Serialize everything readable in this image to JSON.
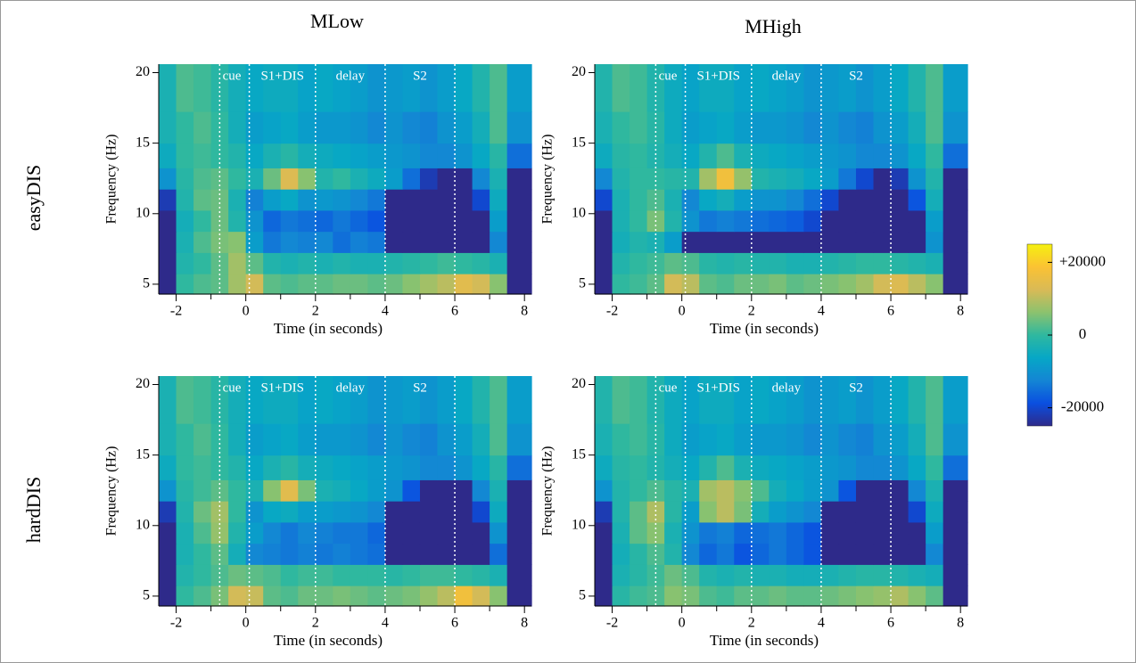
{
  "column_titles": [
    "MLow",
    "MHigh"
  ],
  "row_titles": [
    "easyDIS",
    "hardDIS"
  ],
  "colorbar": {
    "clim": [
      -25000,
      25000
    ],
    "ticks": [
      {
        "value": 20000,
        "label": "+20000"
      },
      0,
      -20000
    ],
    "colormap": [
      "#2e2a8a",
      "#0a4fe0",
      "#1485d4",
      "#06a7c6",
      "#2fb89f",
      "#8cc26e",
      "#d9ba56",
      "#fbc233",
      "#f5f010"
    ]
  },
  "chart_data": [
    {
      "type": "heatmap",
      "xlabel": "Time (in seconds)",
      "ylabel": "Frequency (Hz)",
      "xlim": [
        -2.5,
        8.2
      ],
      "ylim": [
        4.3,
        20.6
      ],
      "xticks": [
        -2,
        0,
        2,
        4,
        6,
        8
      ],
      "xminorticks": [
        -1,
        1,
        3,
        5,
        7
      ],
      "yticks": [
        5,
        10,
        15,
        20
      ],
      "x": [
        -2.25,
        -1.75,
        -1.25,
        -0.75,
        -0.25,
        0.25,
        0.75,
        1.25,
        1.75,
        2.25,
        2.75,
        3.25,
        3.75,
        4.25,
        4.75,
        5.25,
        5.75,
        6.25,
        6.75,
        7.25,
        7.75
      ],
      "y": [
        5,
        6.5,
        8,
        9.5,
        11,
        12.5,
        14,
        16,
        18.5
      ],
      "event_lines": [
        -0.75,
        0.1,
        2,
        4,
        6
      ],
      "annotations": [
        {
          "text": "cue",
          "x": -0.4
        },
        {
          "text": "S1+DIS",
          "x": 1.05
        },
        {
          "text": "delay",
          "x": 3
        },
        {
          "text": "S2",
          "x": 5
        }
      ],
      "values": [
        [
          -25000,
          0,
          2000,
          3000,
          8000,
          12000,
          3000,
          2000,
          3000,
          3000,
          4000,
          4000,
          3000,
          4000,
          6000,
          8000,
          10000,
          14000,
          12000,
          6000,
          -25000
        ],
        [
          -25000,
          -2000,
          0,
          3000,
          8000,
          3000,
          -2000,
          -3000,
          -2000,
          -3000,
          -2000,
          -3000,
          -3000,
          -2000,
          -1000,
          0,
          1000,
          0,
          -1000,
          -3000,
          -25000
        ],
        [
          -25000,
          -3000,
          2000,
          5000,
          6000,
          -8000,
          -14000,
          -12000,
          -13000,
          -12000,
          -15000,
          -13000,
          -14000,
          -25000,
          -25000,
          -25000,
          -25000,
          -25000,
          -25000,
          -12000,
          -25000
        ],
        [
          -25000,
          -4000,
          0,
          4000,
          -2000,
          -10000,
          -16000,
          -14000,
          -15000,
          -16000,
          -14000,
          -16000,
          -18000,
          -25000,
          -25000,
          -25000,
          -25000,
          -25000,
          -25000,
          -8000,
          -25000
        ],
        [
          -22000,
          -2000,
          3000,
          4000,
          -3000,
          -13000,
          -8000,
          -6000,
          -10000,
          -9000,
          -10000,
          -12000,
          -14000,
          -25000,
          -25000,
          -25000,
          -25000,
          -25000,
          -20000,
          -5000,
          -25000
        ],
        [
          -10000,
          -1000,
          2000,
          3000,
          0,
          -3000,
          4000,
          13000,
          6000,
          -2000,
          0,
          -3000,
          -5000,
          -8000,
          -15000,
          -22000,
          -25000,
          -25000,
          -12000,
          -3000,
          -25000
        ],
        [
          -5000,
          0,
          1000,
          0,
          -2000,
          -6000,
          -3000,
          -1000,
          -4000,
          -5000,
          -6000,
          -7000,
          -8000,
          -9000,
          -10000,
          -12000,
          -12000,
          -10000,
          -6000,
          -1000,
          -15000
        ],
        [
          -3000,
          0,
          2000,
          0,
          -4000,
          -8000,
          -7000,
          -6000,
          -8000,
          -9000,
          -9000,
          -10000,
          -12000,
          -10000,
          -12000,
          -13000,
          -10000,
          -8000,
          -4000,
          2000,
          -10000
        ],
        [
          -3000,
          2000,
          1000,
          -1000,
          -4000,
          -6000,
          -5000,
          -5000,
          -7000,
          -6000,
          -7000,
          -8000,
          -10000,
          -9000,
          -8000,
          -10000,
          -8000,
          -6000,
          -2000,
          2000,
          -8000
        ]
      ]
    },
    {
      "type": "heatmap",
      "xlabel": "Time (in seconds)",
      "ylabel": "Frequency (Hz)",
      "xlim": [
        -2.5,
        8.2
      ],
      "ylim": [
        4.3,
        20.6
      ],
      "xticks": [
        -2,
        0,
        2,
        4,
        6,
        8
      ],
      "xminorticks": [
        -1,
        1,
        3,
        5,
        7
      ],
      "yticks": [
        5,
        10,
        15,
        20
      ],
      "x": [
        -2.25,
        -1.75,
        -1.25,
        -0.75,
        -0.25,
        0.25,
        0.75,
        1.25,
        1.75,
        2.25,
        2.75,
        3.25,
        3.75,
        4.25,
        4.75,
        5.25,
        5.75,
        6.25,
        6.75,
        7.25,
        7.75
      ],
      "y": [
        5,
        6.5,
        8,
        9.5,
        11,
        12.5,
        14,
        16,
        18.5
      ],
      "event_lines": [
        -0.75,
        0.1,
        2,
        4,
        6
      ],
      "annotations": [
        {
          "text": "cue",
          "x": -0.4
        },
        {
          "text": "S1+DIS",
          "x": 1.05
        },
        {
          "text": "delay",
          "x": 3
        },
        {
          "text": "S2",
          "x": 5
        }
      ],
      "values": [
        [
          -25000,
          0,
          1000,
          3000,
          12000,
          10000,
          3000,
          2000,
          4000,
          4000,
          5000,
          3000,
          4000,
          5000,
          6000,
          8000,
          12000,
          13000,
          10000,
          6000,
          -25000
        ],
        [
          -25000,
          -2000,
          0,
          1000,
          3000,
          2000,
          -1000,
          -2000,
          -1000,
          -2000,
          -2000,
          -3000,
          -3000,
          -2000,
          -1000,
          0,
          0,
          -1000,
          -2000,
          -3000,
          -25000
        ],
        [
          -25000,
          -4000,
          -2000,
          -3000,
          -8000,
          -25000,
          -25000,
          -25000,
          -25000,
          -25000,
          -25000,
          -25000,
          -25000,
          -25000,
          -25000,
          -25000,
          -25000,
          -25000,
          -25000,
          -10000,
          -25000
        ],
        [
          -25000,
          -3000,
          0,
          5000,
          -2000,
          -10000,
          -14000,
          -13000,
          -14000,
          -15000,
          -16000,
          -17000,
          -20000,
          -25000,
          -25000,
          -25000,
          -25000,
          -25000,
          -25000,
          -8000,
          -25000
        ],
        [
          -20000,
          -3000,
          0,
          2000,
          -3000,
          -12000,
          -6000,
          -4000,
          -8000,
          -10000,
          -10000,
          -12000,
          -15000,
          -20000,
          -25000,
          -25000,
          -25000,
          -25000,
          -18000,
          -4000,
          -25000
        ],
        [
          -12000,
          -2000,
          0,
          0,
          -1000,
          -2000,
          8000,
          17000,
          7000,
          -2000,
          -3000,
          -4000,
          -6000,
          -8000,
          -14000,
          -20000,
          -25000,
          -22000,
          -10000,
          -2000,
          -25000
        ],
        [
          -5000,
          -1000,
          0,
          -2000,
          -4000,
          -6000,
          -2000,
          2000,
          -3000,
          -5000,
          -6000,
          -7000,
          -8000,
          -9000,
          -10000,
          -12000,
          -12000,
          -10000,
          -6000,
          0,
          -15000
        ],
        [
          -3000,
          0,
          1000,
          -1000,
          -5000,
          -8000,
          -7000,
          -6000,
          -8000,
          -9000,
          -9000,
          -10000,
          -12000,
          -10000,
          -12000,
          -13000,
          -10000,
          -8000,
          -4000,
          2000,
          -10000
        ],
        [
          -2000,
          2000,
          1000,
          -2000,
          -5000,
          -7000,
          -5000,
          -5000,
          -7000,
          -6000,
          -7000,
          -8000,
          -10000,
          -9000,
          -8000,
          -10000,
          -8000,
          -6000,
          -2000,
          2000,
          -8000
        ]
      ]
    },
    {
      "type": "heatmap",
      "xlabel": "Time (in seconds)",
      "ylabel": "Frequency (Hz)",
      "xlim": [
        -2.5,
        8.2
      ],
      "ylim": [
        4.3,
        20.6
      ],
      "xticks": [
        -2,
        0,
        2,
        4,
        6,
        8
      ],
      "xminorticks": [
        -1,
        1,
        3,
        5,
        7
      ],
      "yticks": [
        5,
        10,
        15,
        20
      ],
      "x": [
        -2.25,
        -1.75,
        -1.25,
        -0.75,
        -0.25,
        0.25,
        0.75,
        1.25,
        1.75,
        2.25,
        2.75,
        3.25,
        3.75,
        4.25,
        4.75,
        5.25,
        5.75,
        6.25,
        6.75,
        7.25,
        7.75
      ],
      "y": [
        5,
        6.5,
        8,
        9.5,
        11,
        12.5,
        14,
        16,
        18.5
      ],
      "event_lines": [
        -0.75,
        0.1,
        2,
        4,
        6
      ],
      "annotations": [
        {
          "text": "cue",
          "x": -0.4
        },
        {
          "text": "S1+DIS",
          "x": 1.05
        },
        {
          "text": "delay",
          "x": 3
        },
        {
          "text": "S2",
          "x": 5
        }
      ],
      "values": [
        [
          -25000,
          0,
          2000,
          5000,
          12000,
          11000,
          3000,
          2000,
          4000,
          4000,
          5000,
          4000,
          3000,
          4000,
          5000,
          7000,
          10000,
          17000,
          12000,
          6000,
          -25000
        ],
        [
          -25000,
          -2000,
          0,
          2000,
          4000,
          3000,
          2000,
          0,
          1000,
          1000,
          0,
          0,
          0,
          -1000,
          0,
          1000,
          1000,
          0,
          -1000,
          -3000,
          -25000
        ],
        [
          -25000,
          -3000,
          0,
          3000,
          -4000,
          -12000,
          -13000,
          -14000,
          -13000,
          -14000,
          -13000,
          -14000,
          -15000,
          -25000,
          -25000,
          -25000,
          -25000,
          -25000,
          -25000,
          -15000,
          -25000
        ],
        [
          -25000,
          -3000,
          2000,
          7000,
          -2000,
          -8000,
          -12000,
          -14000,
          -12000,
          -13000,
          -14000,
          -14000,
          -16000,
          -25000,
          -25000,
          -25000,
          -25000,
          -25000,
          -25000,
          -10000,
          -25000
        ],
        [
          -22000,
          -2000,
          4000,
          8000,
          0,
          -10000,
          -6000,
          -5000,
          -8000,
          -8000,
          -9000,
          -10000,
          -12000,
          -25000,
          -25000,
          -25000,
          -25000,
          -25000,
          -20000,
          -5000,
          -25000
        ],
        [
          -10000,
          -1000,
          1000,
          3000,
          0,
          -3000,
          6000,
          14000,
          5000,
          -3000,
          -4000,
          -6000,
          -8000,
          -10000,
          -18000,
          -25000,
          -25000,
          -25000,
          -12000,
          -3000,
          -25000
        ],
        [
          -5000,
          0,
          1000,
          0,
          -2000,
          -6000,
          -3000,
          -1000,
          -4000,
          -5000,
          -6000,
          -7000,
          -8000,
          -9000,
          -10000,
          -12000,
          -12000,
          -10000,
          -6000,
          -1000,
          -15000
        ],
        [
          -3000,
          0,
          2000,
          0,
          -4000,
          -8000,
          -7000,
          -6000,
          -8000,
          -9000,
          -9000,
          -10000,
          -12000,
          -10000,
          -12000,
          -13000,
          -10000,
          -8000,
          -4000,
          2000,
          -10000
        ],
        [
          -3000,
          2000,
          1000,
          -1000,
          -4000,
          -6000,
          -5000,
          -5000,
          -7000,
          -6000,
          -7000,
          -8000,
          -10000,
          -9000,
          -8000,
          -10000,
          -8000,
          -6000,
          -2000,
          2000,
          -8000
        ]
      ]
    },
    {
      "type": "heatmap",
      "xlabel": "Time (in seconds)",
      "ylabel": "Frequency (Hz)",
      "xlim": [
        -2.5,
        8.2
      ],
      "ylim": [
        4.3,
        20.6
      ],
      "xticks": [
        -2,
        0,
        2,
        4,
        6,
        8
      ],
      "xminorticks": [
        -1,
        1,
        3,
        5,
        7
      ],
      "yticks": [
        5,
        10,
        15,
        20
      ],
      "x": [
        -2.25,
        -1.75,
        -1.25,
        -0.75,
        -0.25,
        0.25,
        0.75,
        1.25,
        1.75,
        2.25,
        2.75,
        3.25,
        3.75,
        4.25,
        4.75,
        5.25,
        5.75,
        6.25,
        6.75,
        7.25,
        7.75
      ],
      "y": [
        5,
        6.5,
        8,
        9.5,
        11,
        12.5,
        14,
        16,
        18.5
      ],
      "event_lines": [
        -0.75,
        0.1,
        2,
        4,
        6
      ],
      "annotations": [
        {
          "text": "cue",
          "x": -0.4
        },
        {
          "text": "S1+DIS",
          "x": 1.05
        },
        {
          "text": "delay",
          "x": 3
        },
        {
          "text": "S2",
          "x": 5
        }
      ],
      "values": [
        [
          -25000,
          -1000,
          1000,
          2000,
          6000,
          5000,
          2000,
          1000,
          3000,
          3000,
          4000,
          3000,
          3000,
          4000,
          5000,
          6000,
          7000,
          9000,
          6000,
          3000,
          -25000
        ],
        [
          -25000,
          -3000,
          -1000,
          1000,
          4000,
          2000,
          -2000,
          -3000,
          -2000,
          -3000,
          -3000,
          -4000,
          -4000,
          -3000,
          -2000,
          -1000,
          -1000,
          -2000,
          -3000,
          -4000,
          -25000
        ],
        [
          -25000,
          -4000,
          -1000,
          2000,
          -2000,
          -12000,
          -16000,
          -14000,
          -18000,
          -16000,
          -14000,
          -16000,
          -18000,
          -25000,
          -25000,
          -25000,
          -25000,
          -25000,
          -25000,
          -12000,
          -25000
        ],
        [
          -25000,
          -3000,
          3000,
          6000,
          -3000,
          -10000,
          -14000,
          -13000,
          -16000,
          -15000,
          -14000,
          -16000,
          -18000,
          -25000,
          -25000,
          -25000,
          -25000,
          -25000,
          -25000,
          -8000,
          -25000
        ],
        [
          -22000,
          -2000,
          3000,
          9000,
          -1000,
          -8000,
          6000,
          10000,
          5000,
          -4000,
          -8000,
          -10000,
          -12000,
          -25000,
          -25000,
          -25000,
          -25000,
          -25000,
          -20000,
          -5000,
          -25000
        ],
        [
          -10000,
          -2000,
          0,
          2000,
          -1000,
          -3000,
          8000,
          10000,
          6000,
          2000,
          -4000,
          -6000,
          -8000,
          -10000,
          -18000,
          -25000,
          -25000,
          -25000,
          -12000,
          -3000,
          -25000
        ],
        [
          -5000,
          -1000,
          0,
          -2000,
          -4000,
          -6000,
          -2000,
          2000,
          -3000,
          -5000,
          -6000,
          -7000,
          -8000,
          -9000,
          -10000,
          -12000,
          -12000,
          -10000,
          -6000,
          0,
          -15000
        ],
        [
          -3000,
          0,
          1000,
          -1000,
          -5000,
          -8000,
          -7000,
          -6000,
          -8000,
          -9000,
          -9000,
          -10000,
          -12000,
          -10000,
          -12000,
          -13000,
          -10000,
          -8000,
          -4000,
          2000,
          -10000
        ],
        [
          -2000,
          2000,
          1000,
          -2000,
          -5000,
          -7000,
          -5000,
          -5000,
          -7000,
          -6000,
          -7000,
          -8000,
          -10000,
          -9000,
          -8000,
          -10000,
          -8000,
          -6000,
          -2000,
          2000,
          -8000
        ]
      ]
    }
  ]
}
